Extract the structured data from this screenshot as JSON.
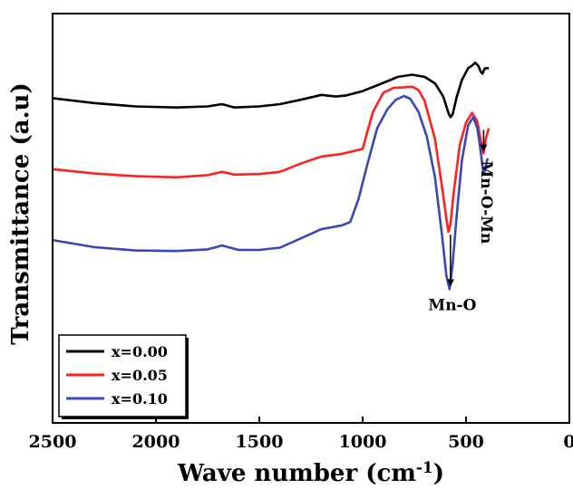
{
  "chart_data": {
    "type": "line",
    "xlabel": "Wave number (cm",
    "xlabel_sup": "-1",
    "xlabel_close": ")",
    "ylabel": "Transmittance (a.u)",
    "xlim": [
      2500,
      0
    ],
    "x_ticks": [
      2500,
      2000,
      1500,
      1000,
      500,
      0
    ],
    "x_tick_labels": [
      "2500",
      "2000",
      "1500",
      "1000",
      "500",
      "0"
    ],
    "y_ticks_shown": false,
    "grid": false,
    "legend_position": "bottom-left",
    "series": [
      {
        "name": "x=0.00",
        "color": "#000000",
        "points": [
          [
            2500,
            -5.5
          ],
          [
            2300,
            -6.4
          ],
          [
            2100,
            -7.0
          ],
          [
            1900,
            -7.2
          ],
          [
            1750,
            -7.0
          ],
          [
            1680,
            -6.6
          ],
          [
            1620,
            -7.2
          ],
          [
            1500,
            -7.0
          ],
          [
            1400,
            -6.6
          ],
          [
            1300,
            -5.8
          ],
          [
            1200,
            -4.9
          ],
          [
            1130,
            -5.2
          ],
          [
            1080,
            -5.0
          ],
          [
            1000,
            -4.2
          ],
          [
            900,
            -2.7
          ],
          [
            830,
            -1.6
          ],
          [
            760,
            -1.2
          ],
          [
            700,
            -1.6
          ],
          [
            650,
            -2.8
          ],
          [
            610,
            -5.2
          ],
          [
            585,
            -8.2
          ],
          [
            575,
            -9.0
          ],
          [
            565,
            -8.5
          ],
          [
            545,
            -5.3
          ],
          [
            520,
            -2.2
          ],
          [
            490,
            0.0
          ],
          [
            470,
            0.5
          ],
          [
            455,
            1.0
          ],
          [
            440,
            0.4
          ],
          [
            428,
            -0.7
          ],
          [
            420,
            -1.0
          ],
          [
            410,
            -0.1
          ],
          [
            400,
            0.0
          ],
          [
            390,
            0.0
          ]
        ]
      },
      {
        "name": "x=0.05",
        "color": "#ff2020",
        "points": [
          [
            2500,
            -18.5
          ],
          [
            2300,
            -19.3
          ],
          [
            2100,
            -19.8
          ],
          [
            1900,
            -20.0
          ],
          [
            1750,
            -19.6
          ],
          [
            1680,
            -19.0
          ],
          [
            1620,
            -19.5
          ],
          [
            1500,
            -19.4
          ],
          [
            1400,
            -19.0
          ],
          [
            1300,
            -17.5
          ],
          [
            1200,
            -16.2
          ],
          [
            1100,
            -15.7
          ],
          [
            1000,
            -14.8
          ],
          [
            980,
            -12.0
          ],
          [
            950,
            -8.0
          ],
          [
            900,
            -4.5
          ],
          [
            850,
            -3.6
          ],
          [
            800,
            -3.5
          ],
          [
            760,
            -3.4
          ],
          [
            730,
            -4.0
          ],
          [
            700,
            -6.0
          ],
          [
            650,
            -13.0
          ],
          [
            615,
            -22.0
          ],
          [
            595,
            -27.5
          ],
          [
            585,
            -30.0
          ],
          [
            575,
            -28.5
          ],
          [
            560,
            -23.0
          ],
          [
            530,
            -14.0
          ],
          [
            500,
            -10.0
          ],
          [
            470,
            -8.2
          ],
          [
            445,
            -9.8
          ],
          [
            430,
            -13.0
          ],
          [
            415,
            -15.6
          ],
          [
            405,
            -13.0
          ],
          [
            390,
            -11.0
          ]
        ]
      },
      {
        "name": "x=0.10",
        "color": "#3848b8",
        "points": [
          [
            2500,
            -31.5
          ],
          [
            2300,
            -32.8
          ],
          [
            2100,
            -33.4
          ],
          [
            1900,
            -33.5
          ],
          [
            1750,
            -33.2
          ],
          [
            1680,
            -32.5
          ],
          [
            1600,
            -33.3
          ],
          [
            1500,
            -33.3
          ],
          [
            1400,
            -32.9
          ],
          [
            1300,
            -31.2
          ],
          [
            1200,
            -29.5
          ],
          [
            1100,
            -28.8
          ],
          [
            1060,
            -28.2
          ],
          [
            1020,
            -24.0
          ],
          [
            980,
            -18.0
          ],
          [
            930,
            -11.0
          ],
          [
            880,
            -7.5
          ],
          [
            840,
            -5.8
          ],
          [
            800,
            -5.1
          ],
          [
            770,
            -5.6
          ],
          [
            730,
            -8.0
          ],
          [
            690,
            -12.5
          ],
          [
            650,
            -20.0
          ],
          [
            615,
            -31.0
          ],
          [
            595,
            -38.0
          ],
          [
            580,
            -40.5
          ],
          [
            565,
            -36.0
          ],
          [
            545,
            -27.0
          ],
          [
            520,
            -17.0
          ],
          [
            490,
            -10.5
          ],
          [
            465,
            -9.0
          ],
          [
            445,
            -11.0
          ],
          [
            430,
            -15.0
          ],
          [
            415,
            -19.5
          ],
          [
            405,
            -18.0
          ],
          [
            395,
            -16.5
          ]
        ]
      }
    ],
    "annotations": [
      {
        "text": "Mn-O",
        "x": 575,
        "y_from": -30.5,
        "y_to": -40.0
      },
      {
        "text": "Mn-O-Mn",
        "x": 415,
        "y_from": -11.3,
        "y_to": -15.3
      }
    ],
    "y_range_hidden": [
      -65,
      10
    ]
  }
}
